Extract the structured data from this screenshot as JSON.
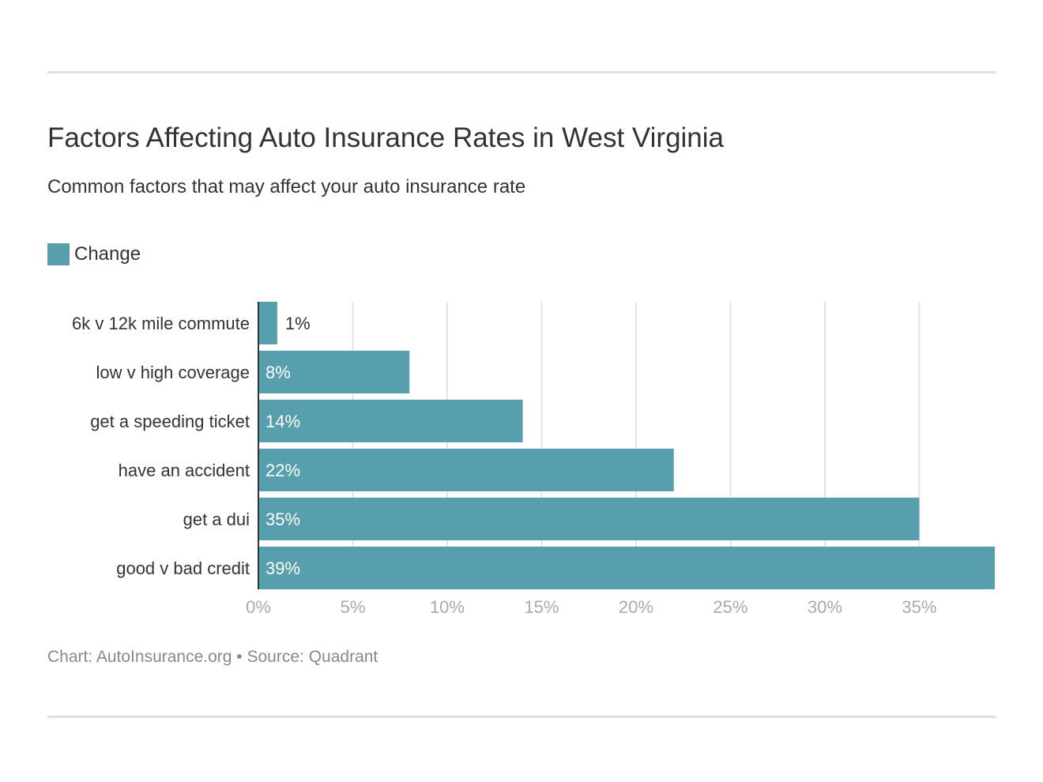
{
  "chart_data": {
    "type": "bar",
    "orientation": "horizontal",
    "title": "Factors Affecting Auto Insurance Rates in West Virginia",
    "subtitle": "Common factors that may affect your auto insurance rate",
    "categories": [
      "6k v 12k mile commute",
      "low v high coverage",
      "get a speeding ticket",
      "have an accident",
      "get a dui",
      "good v bad credit"
    ],
    "series": [
      {
        "name": "Change",
        "values": [
          1,
          8,
          14,
          22,
          35,
          39
        ],
        "color": "#589fae"
      }
    ],
    "data_labels": [
      "1%",
      "8%",
      "14%",
      "22%",
      "35%",
      "39%"
    ],
    "xlim": [
      0,
      39
    ],
    "xticks": [
      0,
      5,
      10,
      15,
      20,
      25,
      30,
      35
    ],
    "xtick_labels": [
      "0%",
      "5%",
      "10%",
      "15%",
      "20%",
      "25%",
      "30%",
      "35%"
    ],
    "grid": true,
    "legend_placement": "top-left",
    "footer": "Chart: AutoInsurance.org • Source: Quadrant"
  }
}
